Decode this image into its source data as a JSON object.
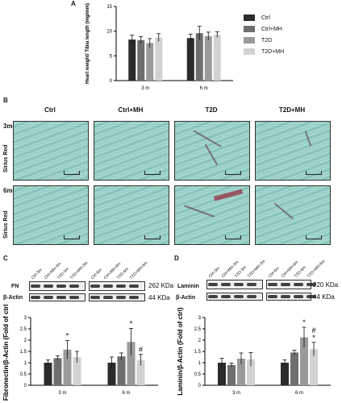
{
  "panels": {
    "a": "A",
    "b": "B",
    "c": "C",
    "d": "D"
  },
  "legend": {
    "items": [
      {
        "label": "Ctrl",
        "color": "#2b2b2b"
      },
      {
        "label": "Ctrl+MH",
        "color": "#6e6e6e"
      },
      {
        "label": "T2D",
        "color": "#9a9a9a"
      },
      {
        "label": "T2D+MH",
        "color": "#d2d2d2"
      }
    ]
  },
  "histology": {
    "columns": [
      "Ctrl",
      "Ctrl+MH",
      "T2D",
      "T2D+MH"
    ],
    "rows": [
      {
        "time": "3m",
        "stain": "Sirius Red"
      },
      {
        "time": "6m",
        "stain": "Sirius Red"
      }
    ]
  },
  "blot_c": {
    "lanes": [
      "Ctrl-3m",
      "Ctrl+MH-3m",
      "T2D-3m",
      "T2D+MH-3m",
      "Ctrl-6m",
      "Ctrl+MH-6m",
      "T2D-6m",
      "T2D+MH-6m"
    ],
    "target": "FN",
    "target_kda": "262 KDa",
    "loading": "β-Actin",
    "loading_kda": "44 KDa"
  },
  "blot_d": {
    "lanes": [
      "Ctrl-3m",
      "Ctrl+MH-3m",
      "T2D-3m",
      "T2D+MH-3m",
      "Ctrl-6m",
      "Ctrl+MH-6m",
      "T2D-6m",
      "T2D+MH-6m"
    ],
    "target": "Laminin",
    "target_kda": "220 KDa",
    "loading": "β-Actin",
    "loading_kda": "44 KDa"
  },
  "chart_data": [
    {
      "id": "A",
      "type": "bar",
      "ylabel": "Heart weight/ Tibia length (mg/mm)",
      "ylim": [
        0,
        15
      ],
      "yticks": [
        "0",
        "5",
        "10",
        "15"
      ],
      "categories": [
        "3 m",
        "6 m"
      ],
      "series": [
        {
          "name": "Ctrl",
          "values": [
            8.3,
            8.6
          ],
          "errors": [
            0.9,
            0.8
          ]
        },
        {
          "name": "Ctrl+MH",
          "values": [
            8.2,
            9.6
          ],
          "errors": [
            0.7,
            1.4
          ]
        },
        {
          "name": "T2D",
          "values": [
            7.6,
            9.0
          ],
          "errors": [
            0.9,
            0.8
          ]
        },
        {
          "name": "T2D+MH",
          "values": [
            8.7,
            9.3
          ],
          "errors": [
            0.8,
            0.6
          ]
        }
      ],
      "annotations": []
    },
    {
      "id": "C",
      "type": "bar",
      "ylabel": "Fibronectin/β-Actin (Fold of ctrl)",
      "ylim": [
        0,
        3
      ],
      "yticks": [
        "0",
        "0.5",
        "1",
        "1.5",
        "2",
        "2.5",
        "3"
      ],
      "categories": [
        "3 m",
        "6 m"
      ],
      "series": [
        {
          "name": "Ctrl",
          "values": [
            1.0,
            1.0
          ],
          "errors": [
            0.12,
            0.25
          ]
        },
        {
          "name": "Ctrl+MH",
          "values": [
            1.2,
            1.28
          ],
          "errors": [
            0.1,
            0.15
          ]
        },
        {
          "name": "T2D",
          "values": [
            1.58,
            1.92
          ],
          "errors": [
            0.4,
            0.6
          ]
        },
        {
          "name": "T2D+MH",
          "values": [
            1.25,
            1.12
          ],
          "errors": [
            0.25,
            0.25
          ]
        }
      ],
      "annotations": [
        {
          "category": 0,
          "series": 2,
          "text": "*"
        },
        {
          "category": 1,
          "series": 2,
          "text": "*"
        },
        {
          "category": 1,
          "series": 3,
          "text": "#"
        }
      ]
    },
    {
      "id": "D",
      "type": "bar",
      "ylabel": "Laminin/β-Actin (Fold of ctrl)",
      "ylim": [
        0,
        3
      ],
      "yticks": [
        "0",
        "0.5",
        "1",
        "1.5",
        "2",
        "2.5",
        "3"
      ],
      "categories": [
        "3 m",
        "6 m"
      ],
      "series": [
        {
          "name": "Ctrl",
          "values": [
            1.0,
            1.0
          ],
          "errors": [
            0.2,
            0.12
          ]
        },
        {
          "name": "Ctrl+MH",
          "values": [
            0.9,
            1.45
          ],
          "errors": [
            0.08,
            0.1
          ]
        },
        {
          "name": "T2D",
          "values": [
            1.18,
            2.12
          ],
          "errors": [
            0.25,
            0.45
          ]
        },
        {
          "name": "T2D+MH",
          "values": [
            1.15,
            1.6
          ],
          "errors": [
            0.3,
            0.3
          ]
        }
      ],
      "annotations": [
        {
          "category": 1,
          "series": 2,
          "text": "*"
        },
        {
          "category": 1,
          "series": 3,
          "text": "*"
        },
        {
          "category": 1,
          "series": 3,
          "text": "#"
        }
      ]
    }
  ]
}
